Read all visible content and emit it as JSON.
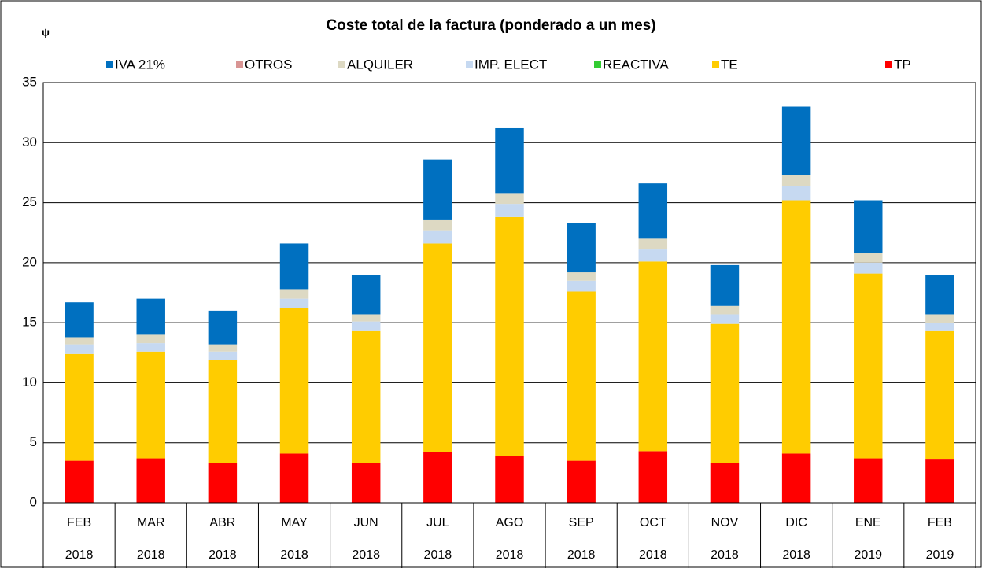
{
  "chart_data": {
    "type": "stacked-bar",
    "title": "Coste total de la factura (ponderado a un mes)",
    "ylabel": "ψ",
    "categories": [
      [
        "FEB",
        "2018"
      ],
      [
        "MAR",
        "2018"
      ],
      [
        "ABR",
        "2018"
      ],
      [
        "MAY",
        "2018"
      ],
      [
        "JUN",
        "2018"
      ],
      [
        "JUL",
        "2018"
      ],
      [
        "AGO",
        "2018"
      ],
      [
        "SEP",
        "2018"
      ],
      [
        "OCT",
        "2018"
      ],
      [
        "NOV",
        "2018"
      ],
      [
        "DIC",
        "2018"
      ],
      [
        "ENE",
        "2019"
      ],
      [
        "FEB",
        "2019"
      ]
    ],
    "series": [
      {
        "name": "IVA 21%",
        "color": "#0070c0",
        "values": [
          2.9,
          3.0,
          2.8,
          3.8,
          3.3,
          5.0,
          5.4,
          4.1,
          4.6,
          3.4,
          5.7,
          4.4,
          3.3
        ]
      },
      {
        "name": "OTROS",
        "color": "#d99594",
        "values": [
          0,
          0,
          0,
          0,
          0,
          0,
          0,
          0,
          0,
          0,
          0,
          0,
          0
        ]
      },
      {
        "name": "ALQUILER",
        "color": "#ddd9c3",
        "values": [
          0.6,
          0.7,
          0.6,
          0.8,
          0.6,
          0.9,
          0.9,
          0.7,
          0.9,
          0.7,
          0.9,
          0.8,
          0.7
        ]
      },
      {
        "name": "IMP. ELECT",
        "color": "#c6d9f1",
        "values": [
          0.8,
          0.7,
          0.7,
          0.8,
          0.8,
          1.1,
          1.1,
          0.9,
          1.0,
          0.8,
          1.2,
          0.9,
          0.7
        ]
      },
      {
        "name": "REACTIVA",
        "color": "#33cc33",
        "values": [
          0,
          0,
          0,
          0,
          0,
          0,
          0,
          0,
          0,
          0,
          0,
          0,
          0
        ]
      },
      {
        "name": "TE",
        "color": "#ffcc00",
        "values": [
          8.9,
          8.9,
          8.6,
          12.1,
          11.0,
          17.4,
          19.9,
          14.1,
          15.8,
          11.6,
          21.1,
          15.4,
          10.7
        ]
      },
      {
        "name": "TP",
        "color": "#ff0000",
        "values": [
          3.5,
          3.7,
          3.3,
          4.1,
          3.3,
          4.2,
          3.9,
          3.5,
          4.3,
          3.3,
          4.1,
          3.7,
          3.6
        ]
      }
    ],
    "ylim": [
      0,
      35
    ],
    "yticks": [
      0,
      5,
      10,
      15,
      20,
      25,
      30,
      35
    ],
    "grid": true,
    "legend": "top"
  }
}
